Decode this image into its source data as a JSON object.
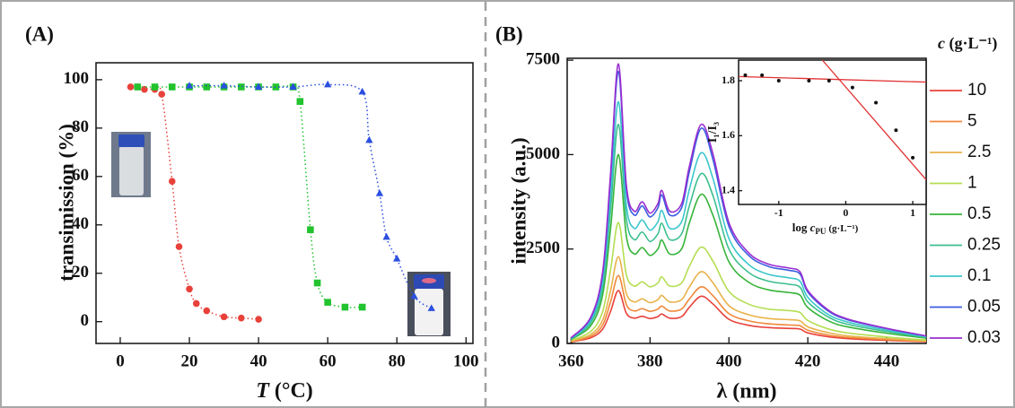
{
  "chart_data": [
    {
      "type": "scatter",
      "title": "(A)",
      "y_label": "transimission (%)",
      "x_label_symbol": "T",
      "x_label_unit": "(°C)",
      "xlim": [
        -7,
        102
      ],
      "xticks": [
        0,
        20,
        40,
        60,
        80,
        100
      ],
      "ylim": [
        -9,
        107
      ],
      "yticks": [
        0,
        20,
        40,
        60,
        80,
        100
      ],
      "series": [
        {
          "color": "#e8413a",
          "marker": "circle",
          "line_style": "dotted",
          "x": [
            3,
            5,
            7,
            10,
            12,
            15,
            17,
            20,
            22,
            25,
            30,
            35,
            40
          ],
          "values": [
            97,
            97,
            96,
            96,
            94,
            58,
            31,
            13.5,
            7.5,
            4.5,
            2,
            1.5,
            1
          ]
        },
        {
          "color": "#22c32e",
          "marker": "square",
          "line_style": "dotted",
          "x": [
            5,
            10,
            15,
            20,
            25,
            30,
            35,
            40,
            45,
            50,
            52,
            55,
            57,
            60,
            65,
            70
          ],
          "values": [
            97,
            97,
            97,
            97,
            97,
            97,
            97,
            97,
            97,
            97,
            91,
            38,
            16,
            8,
            6,
            6
          ]
        },
        {
          "color": "#2b4fe0",
          "marker": "triangle",
          "line_style": "dotted",
          "x": [
            20,
            30,
            40,
            50,
            60,
            70,
            72,
            75,
            77,
            80,
            85,
            90
          ],
          "values": [
            97.5,
            97.5,
            97,
            97,
            98,
            95,
            75,
            53,
            35,
            26,
            10.5,
            5.5
          ]
        }
      ]
    },
    {
      "type": "line",
      "title": "(B)",
      "y_label": "intensity (a.u.)",
      "x_label": "λ (nm)",
      "legend_title": "c",
      "legend_title_unit": "(g·L⁻¹)",
      "legend": "right",
      "xlim": [
        359,
        450
      ],
      "xticks": [
        360,
        380,
        400,
        420,
        440
      ],
      "ylim": [
        0,
        7550
      ],
      "yticks": [
        0,
        2500,
        5000,
        7500
      ],
      "x": [
        360,
        365,
        368,
        370,
        372,
        374,
        376,
        378,
        380,
        382,
        383,
        385,
        388,
        390,
        393,
        396,
        400,
        405,
        410,
        415,
        418,
        420,
        425,
        430,
        440,
        450
      ],
      "series": [
        {
          "name": "10",
          "color": "#e8413a",
          "values": [
            40,
            150,
            380,
            850,
            1400,
            800,
            670,
            720,
            660,
            710,
            780,
            670,
            710,
            960,
            1250,
            1040,
            640,
            480,
            420,
            400,
            380,
            280,
            180,
            130,
            80,
            45
          ]
        },
        {
          "name": "5",
          "color": "#f0883a",
          "values": [
            50,
            190,
            490,
            1100,
            1800,
            1030,
            860,
            920,
            850,
            910,
            990,
            860,
            910,
            1180,
            1500,
            1260,
            790,
            600,
            520,
            490,
            470,
            350,
            225,
            160,
            100,
            55
          ]
        },
        {
          "name": "2.5",
          "color": "#e8b24a",
          "values": [
            60,
            240,
            620,
            1400,
            2300,
            1320,
            1100,
            1180,
            1080,
            1160,
            1270,
            1100,
            1160,
            1500,
            1900,
            1600,
            1000,
            760,
            660,
            630,
            600,
            440,
            290,
            200,
            125,
            65
          ]
        },
        {
          "name": "1",
          "color": "#b4de52",
          "values": [
            75,
            320,
            850,
            1950,
            3200,
            1820,
            1520,
            1630,
            1500,
            1600,
            1760,
            1520,
            1600,
            2050,
            2550,
            2170,
            1380,
            1040,
            910,
            870,
            820,
            610,
            390,
            280,
            170,
            90
          ]
        },
        {
          "name": "0.5",
          "color": "#36b43a",
          "values": [
            105,
            475,
            1290,
            3040,
            5000,
            2840,
            2370,
            2540,
            2330,
            2500,
            2740,
            2370,
            2500,
            3200,
            3950,
            3380,
            2160,
            1620,
            1420,
            1350,
            1280,
            950,
            610,
            440,
            270,
            140
          ]
        },
        {
          "name": "0.25",
          "color": "#3cbf8e",
          "values": [
            120,
            550,
            1490,
            3530,
            5800,
            3300,
            2750,
            2950,
            2700,
            2900,
            3180,
            2750,
            2900,
            3650,
            4500,
            3900,
            2500,
            1880,
            1650,
            1570,
            1490,
            1100,
            710,
            510,
            315,
            160
          ]
        },
        {
          "name": "0.1",
          "color": "#3cc6cc",
          "values": [
            130,
            610,
            1650,
            3900,
            6400,
            3650,
            3050,
            3270,
            3000,
            3220,
            3520,
            3050,
            3220,
            4090,
            5050,
            4350,
            2780,
            2090,
            1830,
            1740,
            1650,
            1220,
            780,
            570,
            350,
            175
          ]
        },
        {
          "name": "0.05",
          "color": "#3a5ee0",
          "values": [
            145,
            680,
            1840,
            4370,
            7200,
            4080,
            3400,
            3640,
            3350,
            3590,
            3930,
            3400,
            3590,
            4560,
            5700,
            4850,
            3100,
            2330,
            2040,
            1940,
            1840,
            1360,
            870,
            630,
            390,
            195
          ]
        },
        {
          "name": "0.03",
          "color": "#9a2ed0",
          "values": [
            150,
            700,
            1900,
            4500,
            7400,
            4200,
            3500,
            3750,
            3450,
            3700,
            4050,
            3500,
            3700,
            4700,
            5800,
            5000,
            3200,
            2400,
            2100,
            2000,
            1900,
            1400,
            900,
            650,
            400,
            200
          ]
        }
      ]
    },
    {
      "type": "scatter",
      "y_label": "I₁/I₃",
      "x_label": "log",
      "x_label_symbol": "c",
      "x_label_subscript": "PU",
      "x_label_unit": "(g·L⁻¹)",
      "xlim": [
        -1.6,
        1.2
      ],
      "xticks": [
        -1,
        0,
        1
      ],
      "ylim": [
        1.35,
        1.875
      ],
      "yticks": [
        1.4,
        1.6,
        1.8
      ],
      "series": [
        {
          "color": "#111111",
          "marker": "circle",
          "x": [
            -1.5,
            -1.25,
            -1.0,
            -0.55,
            -0.25,
            0.1,
            0.45,
            0.75,
            1.0
          ],
          "values": [
            1.82,
            1.82,
            1.8,
            1.8,
            1.8,
            1.775,
            1.72,
            1.62,
            1.52
          ]
        }
      ],
      "fit_lines": [
        {
          "color": "#e03030",
          "x": [
            -1.6,
            1.2
          ],
          "values": [
            1.815,
            1.795
          ]
        },
        {
          "color": "#e03030",
          "x": [
            -0.35,
            1.2
          ],
          "values": [
            1.875,
            1.44
          ]
        }
      ]
    }
  ]
}
